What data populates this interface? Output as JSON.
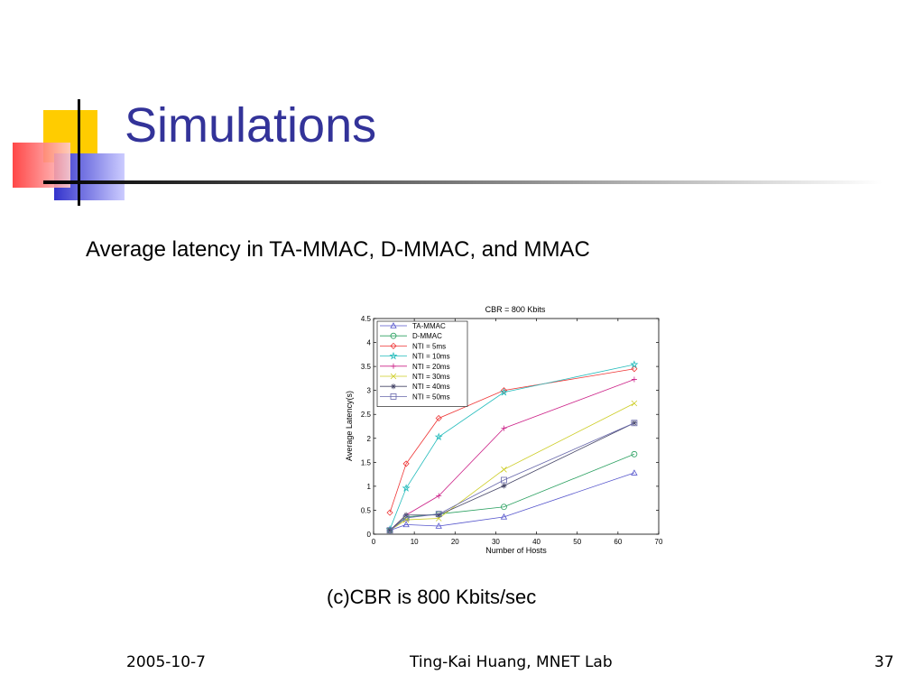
{
  "slide": {
    "title": "Simulations",
    "subtitle": "Average latency in TA-MMAC, D-MMAC, and MMAC",
    "caption": "(c)CBR is 800 Kbits/sec"
  },
  "footer": {
    "date": "2005-10-7",
    "center": "Ting-Kai Huang, MNET Lab",
    "page": "37"
  },
  "theme": {
    "title_color": "#333399",
    "deco_yellow": "#ffcc00",
    "deco_blue": "#3333cc",
    "deco_red": "#ff3333"
  },
  "chart_data": {
    "type": "line",
    "title": "CBR = 800 Kbits",
    "xlabel": "Number of Hosts",
    "ylabel": "Average Latency(s)",
    "xlim": [
      0,
      70
    ],
    "ylim": [
      0,
      4.5
    ],
    "xticks": [
      0,
      10,
      20,
      30,
      40,
      50,
      60,
      70
    ],
    "yticks": [
      0,
      0.5,
      1,
      1.5,
      2,
      2.5,
      3,
      3.5,
      4,
      4.5
    ],
    "grid": false,
    "legend_position": "top-left",
    "x": [
      4,
      8,
      16,
      32,
      64
    ],
    "series": [
      {
        "name": "TA-MMAC",
        "color": "#5555cc",
        "marker": "triangle",
        "values": [
          0.08,
          0.2,
          0.17,
          0.36,
          1.28
        ]
      },
      {
        "name": "D-MMAC",
        "color": "#2aa060",
        "marker": "circle",
        "values": [
          0.08,
          0.36,
          0.42,
          0.57,
          1.67
        ]
      },
      {
        "name": "NTI = 5ms",
        "color": "#ee3333",
        "marker": "diamond",
        "values": [
          0.45,
          1.47,
          2.42,
          3.0,
          3.45
        ]
      },
      {
        "name": "NTI = 10ms",
        "color": "#22bbbb",
        "marker": "star",
        "values": [
          0.1,
          0.96,
          2.03,
          2.96,
          3.54
        ]
      },
      {
        "name": "NTI = 20ms",
        "color": "#cc2288",
        "marker": "plus",
        "values": [
          0.08,
          0.4,
          0.8,
          2.21,
          3.23
        ]
      },
      {
        "name": "NTI = 30ms",
        "color": "#cccc22",
        "marker": "x",
        "values": [
          0.08,
          0.3,
          0.33,
          1.35,
          2.73
        ]
      },
      {
        "name": "NTI = 40ms",
        "color": "#444466",
        "marker": "asterisk",
        "values": [
          0.08,
          0.4,
          0.4,
          1.01,
          2.32
        ]
      },
      {
        "name": "NTI = 50ms",
        "color": "#6666aa",
        "marker": "square",
        "values": [
          0.08,
          0.34,
          0.42,
          1.13,
          2.32
        ]
      }
    ]
  }
}
